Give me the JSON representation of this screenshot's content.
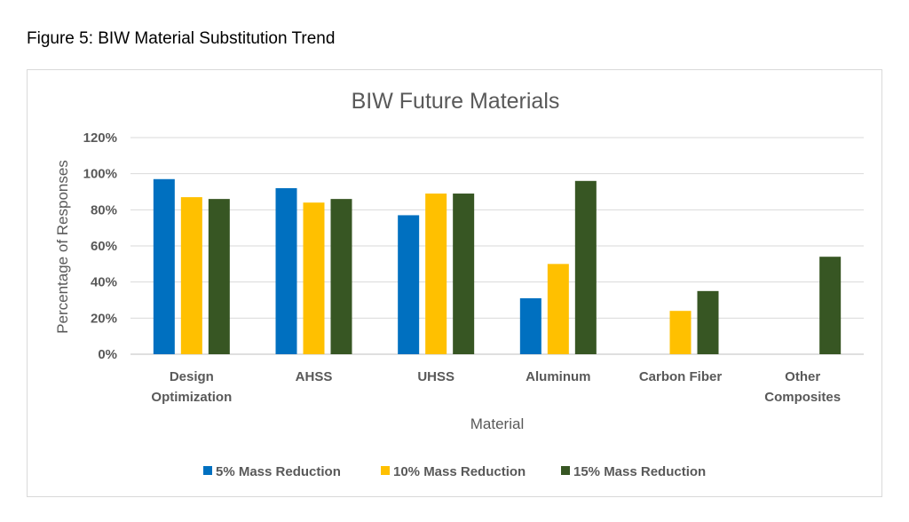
{
  "figure_caption": "Figure 5: BIW Material Substitution Trend",
  "chart_data": {
    "type": "bar",
    "title": "BIW Future Materials",
    "xlabel": "Material",
    "ylabel": "Percentage of Responses",
    "categories": [
      [
        "Design",
        "Optimization"
      ],
      [
        "AHSS"
      ],
      [
        "UHSS"
      ],
      [
        "Aluminum"
      ],
      [
        "Carbon Fiber"
      ],
      [
        "Other",
        "Composites"
      ]
    ],
    "y_ticks": [
      "0%",
      "20%",
      "40%",
      "60%",
      "80%",
      "100%",
      "120%"
    ],
    "ylim": [
      0,
      120
    ],
    "grid": true,
    "legend_position": "bottom",
    "series": [
      {
        "name": "5% Mass Reduction",
        "color": "#0070c0",
        "values": [
          97,
          92,
          77,
          31,
          null,
          null
        ]
      },
      {
        "name": "10% Mass Reduction",
        "color": "#ffc000",
        "values": [
          87,
          84,
          89,
          50,
          24,
          null
        ]
      },
      {
        "name": "15% Mass Reduction",
        "color": "#375623",
        "values": [
          86,
          86,
          89,
          96,
          35,
          54
        ]
      }
    ]
  }
}
